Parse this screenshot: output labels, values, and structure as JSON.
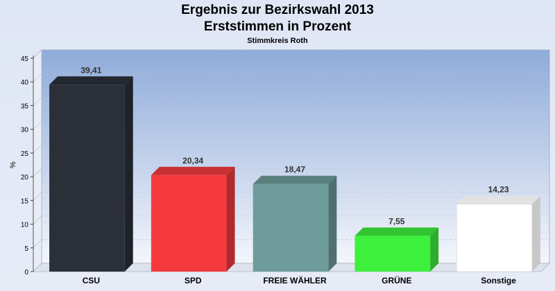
{
  "chart_data": {
    "type": "bar",
    "title": "Ergebnis zur Bezirkswahl 2013",
    "subtitle": "Erststimmen in Prozent",
    "caption": "Stimmkreis Roth",
    "xlabel": "",
    "ylabel": "%",
    "ylim": [
      0,
      45
    ],
    "yticks": [
      "0",
      "5",
      "10",
      "15",
      "20",
      "25",
      "30",
      "35",
      "40",
      "45"
    ],
    "grid": true,
    "categories": [
      "CSU",
      "SPD",
      "FREIE WÄHLER",
      "GRÜNE",
      "Sonstige"
    ],
    "values": [
      39.41,
      20.34,
      18.47,
      7.55,
      14.23
    ],
    "value_labels": [
      "39,41",
      "20,34",
      "18,47",
      "7,55",
      "14,23"
    ],
    "colors": [
      "#2b2f38",
      "#f53a3e",
      "#6e9c9a",
      "#3df03c",
      "#ffffff"
    ]
  }
}
